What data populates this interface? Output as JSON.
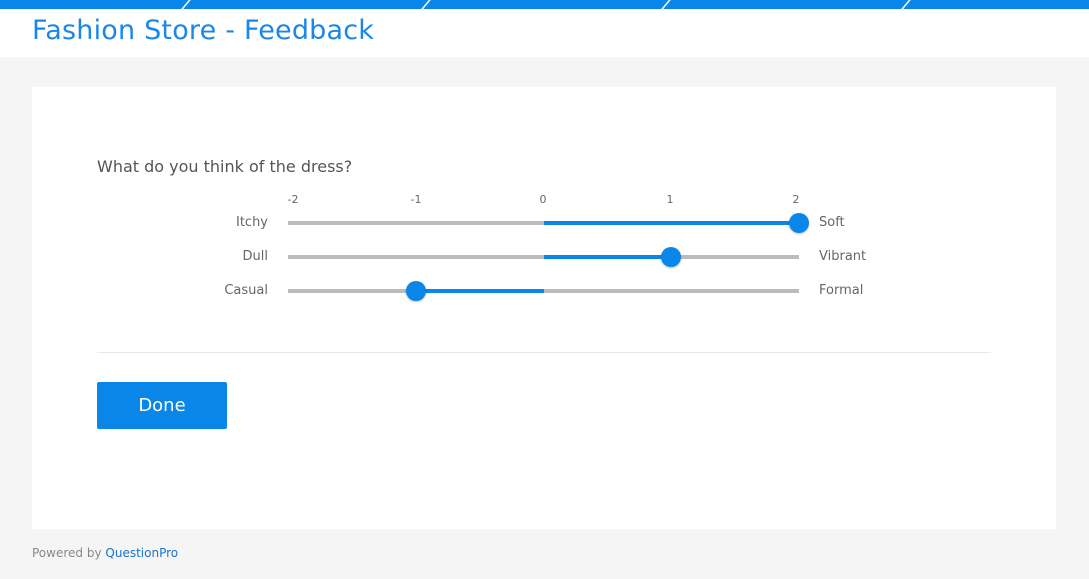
{
  "header": {
    "title": "Fashion Store - Feedback"
  },
  "question": {
    "text": "What do you think of the dress?"
  },
  "scale": {
    "ticks": [
      "-2",
      "-1",
      "0",
      "1",
      "2"
    ],
    "min": -2,
    "max": 2
  },
  "rows": [
    {
      "left": "Itchy",
      "right": "Soft",
      "value": 2
    },
    {
      "left": "Dull",
      "right": "Vibrant",
      "value": 1
    },
    {
      "left": "Casual",
      "right": "Formal",
      "value": -1
    }
  ],
  "done_label": "Done",
  "footer": {
    "prefix": "Powered by",
    "link": "QuestionPro"
  },
  "colors": {
    "accent": "#0a86e8",
    "track": "#bbbbbb",
    "background": "#f5f5f5"
  }
}
